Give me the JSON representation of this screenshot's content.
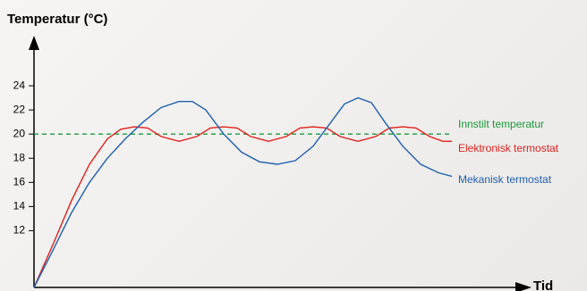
{
  "chart_data": {
    "type": "line",
    "y_label": "Temperatur (°C)",
    "x_label": "Tid",
    "xlim": [
      0,
      552
    ],
    "ylim": [
      7.3,
      28
    ],
    "yticks": [
      12,
      14,
      16,
      18,
      20,
      22,
      24
    ],
    "series": [
      {
        "name": "Innstilt temperatur",
        "color": "#1a9a3a",
        "dashed": true,
        "x": [
          0,
          467
        ],
        "values": [
          20,
          20
        ]
      },
      {
        "name": "Elektronisk termostat",
        "color": "#e0201c",
        "x": [
          0,
          22,
          42,
          62,
          82,
          97,
          112,
          127,
          142,
          162,
          182,
          197,
          212,
          227,
          242,
          262,
          282,
          297,
          312,
          327,
          342,
          362,
          382,
          397,
          412,
          427,
          442,
          457,
          467
        ],
        "values": [
          7.3,
          11,
          14.5,
          17.5,
          19.6,
          20.4,
          20.6,
          20.5,
          19.8,
          19.4,
          19.8,
          20.5,
          20.6,
          20.5,
          19.8,
          19.4,
          19.8,
          20.5,
          20.6,
          20.5,
          19.8,
          19.4,
          19.8,
          20.5,
          20.6,
          20.5,
          19.8,
          19.4,
          19.4
        ]
      },
      {
        "name": "Mekanisk termostat",
        "color": "#1f5fae",
        "x": [
          0,
          22,
          42,
          62,
          82,
          102,
          122,
          142,
          162,
          177,
          192,
          212,
          232,
          252,
          272,
          292,
          312,
          332,
          347,
          362,
          377,
          392,
          412,
          432,
          452,
          467
        ],
        "values": [
          7.3,
          10.5,
          13.5,
          16,
          18,
          19.6,
          21,
          22.2,
          22.7,
          22.7,
          22,
          20,
          18.5,
          17.7,
          17.5,
          17.8,
          19,
          21,
          22.5,
          23,
          22.6,
          21,
          19,
          17.5,
          16.8,
          16.5
        ]
      }
    ]
  }
}
